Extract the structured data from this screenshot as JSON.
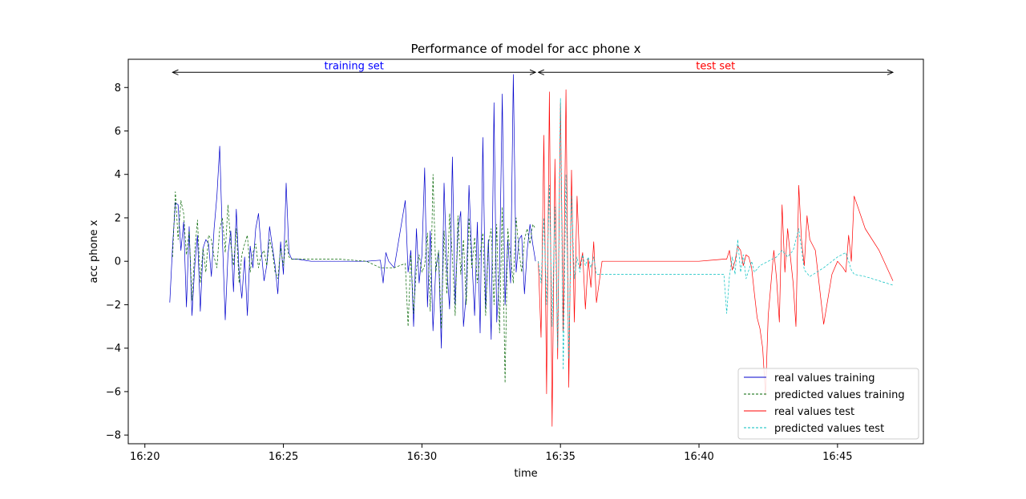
{
  "chart_data": {
    "type": "line",
    "title": "Performance of model for acc phone x",
    "xlabel": "time",
    "ylabel": "acc phone x",
    "x_ticks": [
      "16:20",
      "16:25",
      "16:30",
      "16:35",
      "16:40",
      "16:45"
    ],
    "y_ticks": [
      -8,
      -6,
      -4,
      -2,
      0,
      2,
      4,
      6,
      8
    ],
    "xlim": [
      "16:19.4",
      "16:48.1"
    ],
    "ylim": [
      -8.4,
      9.3
    ],
    "grid": false,
    "legend_position": "lower-right",
    "annotations": [
      {
        "text": "training set",
        "color": "#0000ff",
        "x_start": "16:21",
        "x_end": "16:34.1",
        "y": 8.7
      },
      {
        "text": "test set",
        "color": "#ff0000",
        "x_start": "16:34.2",
        "x_end": "16:47",
        "y": 8.7
      }
    ],
    "series": [
      {
        "name": "real values training",
        "color": "#0000cc",
        "dash": "none",
        "x": [
          20.9,
          21.0,
          21.1,
          21.2,
          21.3,
          21.4,
          21.5,
          21.6,
          21.7,
          21.8,
          21.9,
          22.0,
          22.1,
          22.2,
          22.3,
          22.4,
          22.5,
          22.6,
          22.7,
          22.8,
          22.9,
          23.0,
          23.1,
          23.2,
          23.3,
          23.4,
          23.5,
          23.6,
          23.7,
          23.8,
          23.9,
          24.0,
          24.1,
          24.2,
          24.3,
          24.4,
          24.5,
          24.6,
          24.7,
          24.8,
          24.9,
          25.0,
          25.1,
          25.2,
          25.3,
          25.5,
          26.0,
          27.0,
          28.0,
          28.5,
          28.6,
          28.7,
          28.8,
          29.0,
          29.4,
          29.5,
          29.6,
          29.7,
          29.8,
          29.9,
          30.0,
          30.1,
          30.2,
          30.3,
          30.4,
          30.5,
          30.6,
          30.7,
          30.8,
          30.9,
          31.0,
          31.1,
          31.2,
          31.3,
          31.4,
          31.5,
          31.6,
          31.7,
          31.8,
          31.9,
          32.0,
          32.1,
          32.2,
          32.3,
          32.4,
          32.5,
          32.6,
          32.7,
          32.8,
          32.9,
          33.0,
          33.1,
          33.2,
          33.3,
          33.4,
          33.5,
          33.6,
          33.7,
          33.8,
          33.9,
          34.0,
          34.1
        ],
        "y": [
          -1.9,
          0.7,
          2.7,
          2.6,
          0.5,
          1.8,
          -2.1,
          1.6,
          -2.5,
          -0.2,
          1.2,
          -2.3,
          0.6,
          1.0,
          0.8,
          -0.7,
          1.5,
          3.0,
          5.3,
          1.0,
          -2.7,
          0.3,
          1.4,
          -1.4,
          2.4,
          -0.5,
          -1.7,
          0.2,
          -2.5,
          0.7,
          -0.3,
          1.5,
          2.2,
          0.5,
          -0.9,
          -0.2,
          1.6,
          0.7,
          -0.2,
          -1.5,
          0.9,
          -0.6,
          3.6,
          0.4,
          0.1,
          0.1,
          0.0,
          0.0,
          0.0,
          0.05,
          -1.0,
          0.4,
          0.0,
          -0.3,
          2.8,
          -0.5,
          0.5,
          -3.0,
          1.5,
          -1.0,
          0.3,
          4.3,
          -2.1,
          1.4,
          -3.2,
          -0.3,
          0.4,
          -4.0,
          3.6,
          -0.3,
          -2.2,
          4.8,
          -2.0,
          1.4,
          2.3,
          -3.0,
          -1.5,
          3.5,
          0.2,
          -2.5,
          1.8,
          -3.3,
          5.7,
          -2.2,
          1.0,
          -3.6,
          7.3,
          -2.8,
          -0.5,
          7.7,
          -2.0,
          1.0,
          -1.0,
          8.6,
          -0.5,
          1.0,
          1.2,
          -1.5,
          0.5,
          1.7,
          0.8,
          0.0
        ],
        "width": 0.7
      },
      {
        "name": "predicted values training",
        "color": "#006400",
        "dash": "3,2",
        "x": [
          21.0,
          21.1,
          21.2,
          21.3,
          21.4,
          21.5,
          21.6,
          21.7,
          21.8,
          21.9,
          22.0,
          22.1,
          22.2,
          22.3,
          22.4,
          22.5,
          22.6,
          22.7,
          22.8,
          22.9,
          23.0,
          23.1,
          23.2,
          23.3,
          23.4,
          23.5,
          23.6,
          23.7,
          23.8,
          23.9,
          24.0,
          24.1,
          24.2,
          24.3,
          24.4,
          24.5,
          24.6,
          24.7,
          24.8,
          24.9,
          25.0,
          25.1,
          25.2,
          25.3,
          25.5,
          26.0,
          27.0,
          28.0,
          28.5,
          28.8,
          29.0,
          29.4,
          29.5,
          29.6,
          29.7,
          29.8,
          29.9,
          30.0,
          30.1,
          30.2,
          30.3,
          30.4,
          30.5,
          30.6,
          30.7,
          30.8,
          30.9,
          31.0,
          31.1,
          31.2,
          31.3,
          31.4,
          31.5,
          31.6,
          31.7,
          31.8,
          31.9,
          32.0,
          32.1,
          32.2,
          32.3,
          32.4,
          32.5,
          32.6,
          32.7,
          32.8,
          32.9,
          33.0,
          33.1,
          33.2,
          33.3,
          33.4,
          33.5,
          33.6,
          33.7,
          33.8,
          33.9,
          34.0,
          34.1
        ],
        "y": [
          0.2,
          3.2,
          1.0,
          2.8,
          2.2,
          0.3,
          1.4,
          -1.8,
          0.5,
          1.9,
          -1.0,
          0.6,
          -0.5,
          1.2,
          1.0,
          0.2,
          -0.3,
          1.5,
          2.0,
          0.4,
          2.6,
          0.8,
          -0.2,
          1.5,
          -1.0,
          0.3,
          0.8,
          1.2,
          -0.5,
          0.4,
          0.8,
          -0.3,
          0.3,
          0.5,
          -0.2,
          1.0,
          0.5,
          -0.5,
          -0.8,
          0.6,
          -0.2,
          1.0,
          0.2,
          0.1,
          0.1,
          0.1,
          0.1,
          0.0,
          -0.3,
          -0.3,
          -0.3,
          -0.1,
          -3.0,
          0.3,
          -2.4,
          -0.3,
          0.3,
          -0.5,
          -0.2,
          1.3,
          -2.3,
          4.0,
          -0.5,
          0.5,
          -3.1,
          1.4,
          -1.5,
          2.2,
          0.2,
          -2.5,
          2.1,
          -0.6,
          1.0,
          -2.0,
          2.0,
          -0.3,
          1.1,
          -1.0,
          0.3,
          1.3,
          -2.5,
          0.8,
          1.5,
          -2.0,
          1.7,
          -3.3,
          2.5,
          -5.6,
          1.5,
          0.2,
          -1.0,
          2.0,
          0.5,
          -0.5,
          1.0,
          1.5,
          0.8,
          1.7,
          1.5
        ],
        "width": 0.7
      },
      {
        "name": "real values test",
        "color": "#ff0000",
        "dash": "none",
        "x": [
          34.2,
          34.3,
          34.4,
          34.5,
          34.6,
          34.7,
          34.8,
          34.9,
          35.0,
          35.1,
          35.2,
          35.3,
          35.4,
          35.5,
          35.6,
          35.7,
          35.8,
          35.9,
          36.0,
          36.1,
          36.2,
          36.3,
          36.5,
          37.0,
          38.0,
          39.0,
          40.0,
          40.9,
          41.0,
          41.1,
          41.2,
          41.3,
          41.4,
          41.5,
          41.6,
          41.7,
          41.8,
          41.9,
          42.0,
          42.1,
          42.2,
          42.3,
          42.4,
          42.5,
          42.6,
          42.7,
          42.8,
          42.9,
          43.0,
          43.1,
          43.2,
          43.3,
          43.4,
          43.5,
          43.6,
          43.7,
          43.8,
          43.9,
          44.0,
          44.2,
          44.5,
          44.8,
          45.0,
          45.2,
          45.3,
          45.4,
          45.5,
          45.6,
          46.0,
          46.5,
          47.0
        ],
        "y": [
          0.0,
          -3.5,
          5.8,
          -6.1,
          7.8,
          -7.6,
          4.7,
          -4.5,
          7.3,
          -3.2,
          7.9,
          -5.8,
          4.2,
          -2.8,
          3.0,
          -0.3,
          0.4,
          -2.2,
          0.1,
          -1.2,
          0.9,
          -1.9,
          0.0,
          0.0,
          0.0,
          0.0,
          0.0,
          0.1,
          0.1,
          0.5,
          -0.4,
          0.0,
          0.7,
          0.5,
          -0.2,
          0.3,
          0.2,
          -0.3,
          -1.5,
          -2.6,
          -3.1,
          -4.0,
          -6.2,
          -2.5,
          -1.0,
          0.5,
          -0.8,
          -2.8,
          2.6,
          -0.5,
          1.5,
          0.2,
          -1.0,
          -3.0,
          3.5,
          1.0,
          -0.2,
          2.1,
          1.0,
          0.5,
          -2.9,
          -0.6,
          0.0,
          -0.3,
          -0.5,
          1.2,
          0.0,
          3.0,
          1.5,
          0.5,
          -0.9
        ],
        "width": 0.7
      },
      {
        "name": "predicted values test",
        "color": "#00bfbf",
        "dash": "3,2",
        "x": [
          34.2,
          34.3,
          34.4,
          34.5,
          34.6,
          34.7,
          34.8,
          34.9,
          35.0,
          35.1,
          35.2,
          35.3,
          35.4,
          35.5,
          35.6,
          35.7,
          35.8,
          35.9,
          36.0,
          36.1,
          36.2,
          36.3,
          36.5,
          37.0,
          38.0,
          39.0,
          40.0,
          40.9,
          41.0,
          41.1,
          41.2,
          41.3,
          41.4,
          41.5,
          41.6,
          41.7,
          41.8,
          41.9,
          42.0,
          42.2,
          42.5,
          42.8,
          43.0,
          43.2,
          43.4,
          43.6,
          43.8,
          44.0,
          44.5,
          45.0,
          45.3,
          45.4,
          45.5,
          45.6,
          46.0,
          47.0
        ],
        "y": [
          0.0,
          -1.0,
          2.0,
          -2.0,
          3.5,
          -3.0,
          2.5,
          -4.0,
          7.5,
          -5.0,
          4.0,
          -4.5,
          3.0,
          -0.8,
          0.2,
          -0.5,
          0.3,
          -0.2,
          0.2,
          -0.3,
          0.2,
          -0.6,
          -0.6,
          -0.6,
          -0.6,
          -0.6,
          -0.6,
          -0.6,
          -2.4,
          -0.7,
          0.2,
          -0.6,
          1.0,
          -0.5,
          0.3,
          -0.8,
          -0.4,
          0.0,
          -0.5,
          -0.2,
          0.0,
          0.2,
          0.5,
          0.2,
          0.5,
          1.5,
          -0.4,
          -0.7,
          -0.3,
          0.2,
          0.4,
          0.0,
          -0.4,
          -0.6,
          -0.7,
          -1.1
        ],
        "width": 0.7
      }
    ]
  }
}
